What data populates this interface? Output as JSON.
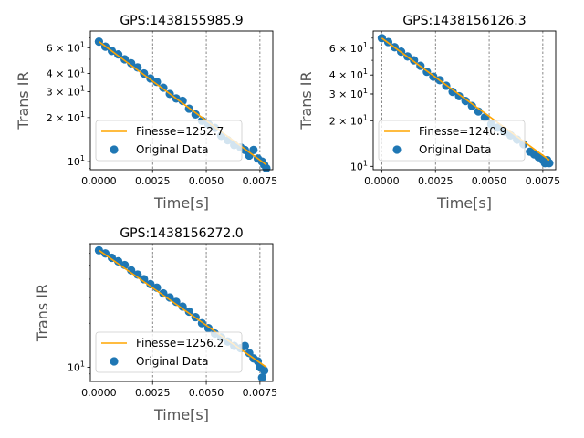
{
  "chart_data": [
    {
      "type": "scatter",
      "title": "GPS:1438155985.9",
      "xlabel": "Time[s]",
      "ylabel": "Trans IR",
      "xlim": [
        -0.0004,
        0.0081
      ],
      "ylim": [
        8.8,
        78
      ],
      "yscale": "log",
      "x_ticks": [
        {
          "value": 0.0,
          "label": "0.0000"
        },
        {
          "value": 0.0025,
          "label": "0.0025"
        },
        {
          "value": 0.005,
          "label": "0.0050"
        },
        {
          "value": 0.0075,
          "label": "0.0075"
        }
      ],
      "y_ticks": [
        {
          "value": 10,
          "label": "10^1",
          "base": "10",
          "exp": "1",
          "mant": ""
        },
        {
          "value": 20,
          "label": "2x10^1",
          "base": "10",
          "exp": "1",
          "mant": "2 × "
        },
        {
          "value": 30,
          "label": "3x10^1",
          "base": "10",
          "exp": "1",
          "mant": "3 × "
        },
        {
          "value": 40,
          "label": "4x10^1",
          "base": "10",
          "exp": "1",
          "mant": "4 × "
        },
        {
          "value": 60,
          "label": "6x10^1",
          "base": "10",
          "exp": "1",
          "mant": "6 × "
        }
      ],
      "grid": "x-dashed",
      "legend_position": "lower-left",
      "series": [
        {
          "name": "Finesse=1252.7",
          "kind": "fit-line",
          "color": "#ffa500",
          "x": [
            0.0,
            0.0078
          ],
          "y": [
            66,
            9.5
          ]
        },
        {
          "name": "Original Data",
          "kind": "scatter",
          "color": "#1f77b4",
          "x": [
            0.0,
            0.0003,
            0.0006,
            0.0009,
            0.0012,
            0.0015,
            0.0018,
            0.0021,
            0.0024,
            0.0027,
            0.003,
            0.0033,
            0.0036,
            0.0039,
            0.0042,
            0.0045,
            0.0048,
            0.0051,
            0.0054,
            0.0057,
            0.006,
            0.0063,
            0.0066,
            0.0068,
            0.007,
            0.0072,
            0.0074,
            0.0076,
            0.0077,
            0.0078
          ],
          "y": [
            66,
            61,
            57,
            54,
            50,
            47,
            44,
            40,
            37,
            35,
            32,
            29,
            27,
            26,
            23,
            21,
            19,
            18,
            17,
            15,
            14,
            13,
            12.5,
            12,
            11,
            12,
            10.5,
            10,
            9.5,
            9
          ]
        }
      ]
    },
    {
      "type": "scatter",
      "title": "GPS:1438156126.3",
      "xlabel": "Time[s]",
      "ylabel": "Trans IR",
      "xlim": [
        -0.0004,
        0.0081
      ],
      "ylim": [
        9.5,
        78
      ],
      "yscale": "log",
      "x_ticks": [
        {
          "value": 0.0,
          "label": "0.0000"
        },
        {
          "value": 0.0025,
          "label": "0.0025"
        },
        {
          "value": 0.005,
          "label": "0.0050"
        },
        {
          "value": 0.0075,
          "label": "0.0075"
        }
      ],
      "y_ticks": [
        {
          "value": 10,
          "label": "10^1",
          "base": "10",
          "exp": "1",
          "mant": ""
        },
        {
          "value": 20,
          "label": "2x10^1",
          "base": "10",
          "exp": "1",
          "mant": "2 × "
        },
        {
          "value": 30,
          "label": "3x10^1",
          "base": "10",
          "exp": "1",
          "mant": "3 × "
        },
        {
          "value": 40,
          "label": "4x10^1",
          "base": "10",
          "exp": "1",
          "mant": "4 × "
        },
        {
          "value": 60,
          "label": "6x10^1",
          "base": "10",
          "exp": "1",
          "mant": "6 × "
        }
      ],
      "grid": "x-dashed",
      "legend_position": "lower-left",
      "series": [
        {
          "name": "Finesse=1240.9",
          "kind": "fit-line",
          "color": "#ffa500",
          "x": [
            0.0,
            0.0078
          ],
          "y": [
            70,
            11
          ]
        },
        {
          "name": "Original Data",
          "kind": "scatter",
          "color": "#1f77b4",
          "x": [
            0.0,
            0.0003,
            0.0006,
            0.0009,
            0.0012,
            0.0015,
            0.0018,
            0.0021,
            0.0024,
            0.0027,
            0.003,
            0.0033,
            0.0036,
            0.0039,
            0.0042,
            0.0045,
            0.0048,
            0.0051,
            0.0054,
            0.0057,
            0.006,
            0.0063,
            0.0066,
            0.0069,
            0.0071,
            0.0073,
            0.0075,
            0.0076,
            0.0077,
            0.0078
          ],
          "y": [
            70,
            66,
            61,
            57,
            53,
            50,
            46,
            42,
            39,
            37,
            34,
            31,
            29,
            27,
            25,
            23,
            21,
            19,
            18,
            17,
            16,
            15,
            14,
            12.5,
            12,
            11.5,
            11,
            10.5,
            11,
            10.5
          ]
        }
      ]
    },
    {
      "type": "scatter",
      "title": "GPS:1438156272.0",
      "xlabel": "Time[s]",
      "ylabel": "Trans IR",
      "xlim": [
        -0.0004,
        0.0081
      ],
      "ylim": [
        8.0,
        70
      ],
      "yscale": "log",
      "x_ticks": [
        {
          "value": 0.0,
          "label": "0.0000"
        },
        {
          "value": 0.0025,
          "label": "0.0025"
        },
        {
          "value": 0.005,
          "label": "0.0050"
        },
        {
          "value": 0.0075,
          "label": "0.0075"
        }
      ],
      "y_ticks": [
        {
          "value": 10,
          "label": "10^1",
          "base": "10",
          "exp": "1",
          "mant": ""
        }
      ],
      "grid": "x-dashed",
      "legend_position": "lower-left",
      "series": [
        {
          "name": "Finesse=1256.2",
          "kind": "fit-line",
          "color": "#ffa500",
          "x": [
            0.0,
            0.0078
          ],
          "y": [
            63,
            10
          ]
        },
        {
          "name": "Original Data",
          "kind": "scatter",
          "color": "#1f77b4",
          "x": [
            0.0,
            0.0003,
            0.0006,
            0.0009,
            0.0012,
            0.0015,
            0.0018,
            0.0021,
            0.0024,
            0.0027,
            0.003,
            0.0033,
            0.0036,
            0.0039,
            0.0042,
            0.0045,
            0.0048,
            0.0051,
            0.0054,
            0.0057,
            0.006,
            0.0063,
            0.0066,
            0.0068,
            0.007,
            0.0072,
            0.0074,
            0.0075,
            0.0076,
            0.0077
          ],
          "y": [
            63,
            60,
            56,
            53,
            50,
            46,
            43,
            40,
            37,
            35,
            32,
            30,
            28,
            26,
            24,
            22,
            20,
            18.5,
            17,
            16,
            15,
            14,
            13.5,
            14,
            12.5,
            11.5,
            11,
            10,
            8.5,
            9.5
          ]
        }
      ]
    }
  ]
}
